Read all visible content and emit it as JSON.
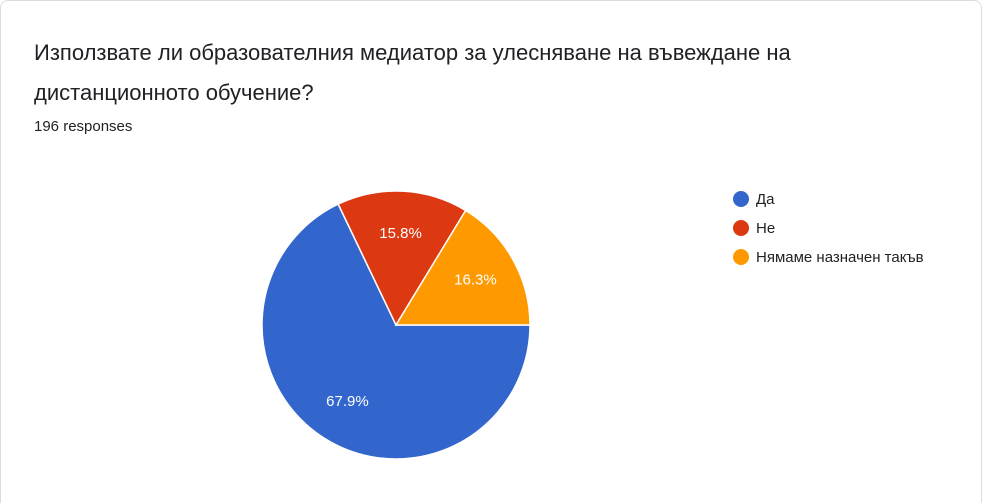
{
  "chart_data": {
    "type": "pie",
    "title": "Използвате ли образователния медиатор за улесняване на въвеждане на дистанционното обучение?",
    "subtitle": "196 responses",
    "series": [
      {
        "name": "Да",
        "color": "#3366cc",
        "values": [
          67.9
        ],
        "value_labels": [
          "67.9%"
        ]
      },
      {
        "name": "Не",
        "color": "#dc3912",
        "values": [
          15.8
        ],
        "value_labels": [
          "15.8%"
        ]
      },
      {
        "name": "Нямаме назначен такъв",
        "color": "#ff9900",
        "values": [
          16.3
        ],
        "value_labels": [
          "16.3%"
        ]
      }
    ],
    "legend": "right"
  }
}
